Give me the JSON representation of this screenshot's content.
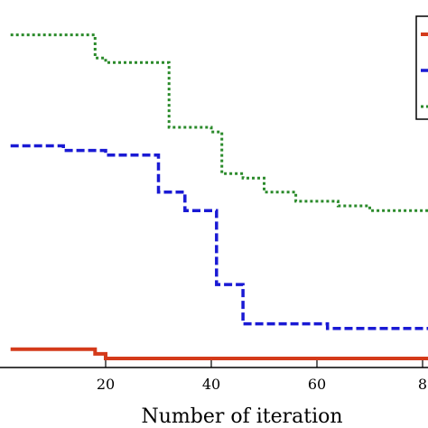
{
  "chart_data": {
    "type": "line",
    "title": "",
    "xlabel": "Number of iteration",
    "ylabel": "",
    "grid": false,
    "legend_placement": "top-right",
    "x_ticks": [
      "20",
      "40",
      "60",
      "8"
    ],
    "series": [
      {
        "color": "#d43a1a",
        "style": "solid",
        "points": [
          [
            2,
            0.2
          ],
          [
            16,
            0.2
          ],
          [
            18,
            0.1
          ],
          [
            20,
            0.0
          ],
          [
            100,
            0.0
          ]
        ]
      },
      {
        "color": "#1a1ad4",
        "style": "dashed",
        "points": [
          [
            2,
            4.6
          ],
          [
            10,
            4.6
          ],
          [
            12,
            4.5
          ],
          [
            18,
            4.5
          ],
          [
            20,
            4.4
          ],
          [
            29,
            4.4
          ],
          [
            30,
            3.6
          ],
          [
            33,
            3.6
          ],
          [
            35,
            3.2
          ],
          [
            39,
            3.2
          ],
          [
            41,
            1.6
          ],
          [
            45,
            1.6
          ],
          [
            46,
            0.75
          ],
          [
            60,
            0.75
          ],
          [
            62,
            0.65
          ],
          [
            100,
            0.65
          ]
        ]
      },
      {
        "color": "#2a8a2a",
        "style": "dotted",
        "points": [
          [
            2,
            7.0
          ],
          [
            16,
            7.0
          ],
          [
            18,
            6.5
          ],
          [
            20,
            6.4
          ],
          [
            30,
            6.4
          ],
          [
            32,
            5.0
          ],
          [
            38,
            5.0
          ],
          [
            40,
            4.9
          ],
          [
            42,
            4.0
          ],
          [
            46,
            3.9
          ],
          [
            50,
            3.6
          ],
          [
            56,
            3.4
          ],
          [
            64,
            3.3
          ],
          [
            70,
            3.2
          ],
          [
            100,
            3.1
          ]
        ]
      }
    ]
  }
}
